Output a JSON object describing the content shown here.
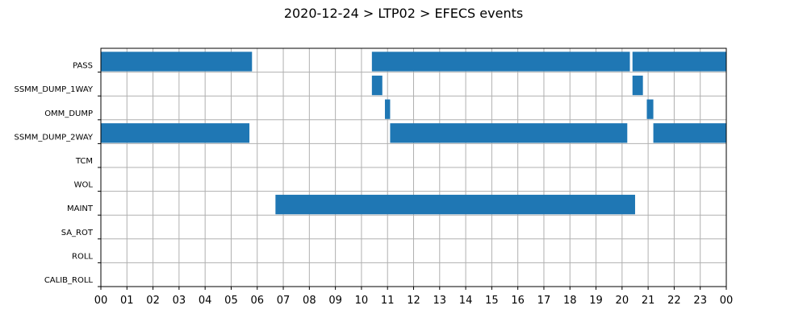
{
  "chart_data": {
    "type": "gantt",
    "title": "2020-12-24 > LTP02 > EFECS events",
    "xlabel": "",
    "ylabel": "",
    "x_unit": "hour of day",
    "xlim": [
      0,
      24
    ],
    "x_tick_labels": [
      "00",
      "01",
      "02",
      "03",
      "04",
      "05",
      "06",
      "07",
      "08",
      "09",
      "10",
      "11",
      "12",
      "13",
      "14",
      "15",
      "16",
      "17",
      "18",
      "19",
      "20",
      "21",
      "22",
      "23",
      "00"
    ],
    "grid": true,
    "bar_color": "#1f77b4",
    "categories": [
      "PASS",
      "SSMM_DUMP_1WAY",
      "OMM_DUMP",
      "SSMM_DUMP_2WAY",
      "TCM",
      "WOL",
      "MAINT",
      "SA_ROT",
      "ROLL",
      "CALIB_ROLL"
    ],
    "events": [
      {
        "category": "PASS",
        "intervals": [
          [
            0.0,
            5.8
          ],
          [
            10.4,
            20.3
          ],
          [
            20.4,
            24.0
          ]
        ]
      },
      {
        "category": "SSMM_DUMP_1WAY",
        "intervals": [
          [
            10.4,
            10.8
          ],
          [
            20.4,
            20.8
          ]
        ]
      },
      {
        "category": "OMM_DUMP",
        "intervals": [
          [
            10.9,
            11.1
          ],
          [
            20.95,
            21.2
          ]
        ]
      },
      {
        "category": "SSMM_DUMP_2WAY",
        "intervals": [
          [
            0.0,
            5.7
          ],
          [
            11.1,
            20.2
          ],
          [
            21.2,
            24.0
          ]
        ]
      },
      {
        "category": "TCM",
        "intervals": []
      },
      {
        "category": "WOL",
        "intervals": []
      },
      {
        "category": "MAINT",
        "intervals": [
          [
            6.7,
            20.5
          ]
        ]
      },
      {
        "category": "SA_ROT",
        "intervals": []
      },
      {
        "category": "ROLL",
        "intervals": []
      },
      {
        "category": "CALIB_ROLL",
        "intervals": []
      }
    ]
  }
}
